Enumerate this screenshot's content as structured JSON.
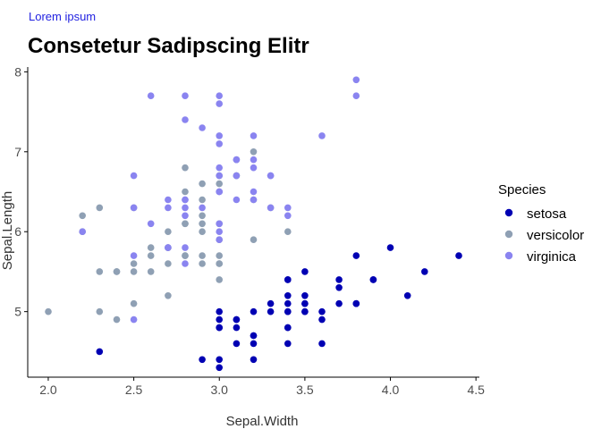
{
  "header": {
    "caption": "Lorem ipsum",
    "title": "Consetetur Sadipscing Elitr"
  },
  "colors": {
    "setosa": "#0000b3",
    "versicolor": "#8fa0b4",
    "virginica": "#8a84f0",
    "caption": "#1f1fe0",
    "axis": "#000000"
  },
  "chart_data": {
    "type": "scatter",
    "title": "Consetetur Sadipscing Elitr",
    "xlabel": "Sepal.Width",
    "ylabel": "Sepal.Length",
    "xlim": [
      1.88,
      4.52
    ],
    "ylim": [
      4.18,
      8.06
    ],
    "x_ticks": [
      "2.0",
      "2.5",
      "3.0",
      "3.5",
      "4.0",
      "4.5"
    ],
    "y_ticks": [
      "5",
      "6",
      "7",
      "8"
    ],
    "legend": {
      "title": "Species",
      "position": "right"
    },
    "series": [
      {
        "name": "setosa",
        "points": [
          [
            3.5,
            5.1
          ],
          [
            3.0,
            4.9
          ],
          [
            3.2,
            4.7
          ],
          [
            3.1,
            4.6
          ],
          [
            3.6,
            5.0
          ],
          [
            3.9,
            5.4
          ],
          [
            3.4,
            4.6
          ],
          [
            3.4,
            5.0
          ],
          [
            2.9,
            4.4
          ],
          [
            3.1,
            4.9
          ],
          [
            3.7,
            5.4
          ],
          [
            3.4,
            4.8
          ],
          [
            3.0,
            4.8
          ],
          [
            3.0,
            4.3
          ],
          [
            4.0,
            5.8
          ],
          [
            4.4,
            5.7
          ],
          [
            3.9,
            5.4
          ],
          [
            3.5,
            5.1
          ],
          [
            3.8,
            5.7
          ],
          [
            3.8,
            5.1
          ],
          [
            3.4,
            5.4
          ],
          [
            3.7,
            5.1
          ],
          [
            3.6,
            4.6
          ],
          [
            3.3,
            5.1
          ],
          [
            3.4,
            4.8
          ],
          [
            3.0,
            5.0
          ],
          [
            3.4,
            5.0
          ],
          [
            3.5,
            5.2
          ],
          [
            3.4,
            5.2
          ],
          [
            3.2,
            4.7
          ],
          [
            3.1,
            4.8
          ],
          [
            3.4,
            5.4
          ],
          [
            4.1,
            5.2
          ],
          [
            4.2,
            5.5
          ],
          [
            3.1,
            4.9
          ],
          [
            3.2,
            5.0
          ],
          [
            3.5,
            5.5
          ],
          [
            3.6,
            4.9
          ],
          [
            3.0,
            4.4
          ],
          [
            3.4,
            5.1
          ],
          [
            3.5,
            5.0
          ],
          [
            2.3,
            4.5
          ],
          [
            3.2,
            4.4
          ],
          [
            3.5,
            5.0
          ],
          [
            3.8,
            5.1
          ],
          [
            3.0,
            4.8
          ],
          [
            3.8,
            5.1
          ],
          [
            3.2,
            4.6
          ],
          [
            3.7,
            5.3
          ],
          [
            3.3,
            5.0
          ]
        ]
      },
      {
        "name": "versicolor",
        "points": [
          [
            3.2,
            7.0
          ],
          [
            3.2,
            6.4
          ],
          [
            3.1,
            6.9
          ],
          [
            2.3,
            5.5
          ],
          [
            2.8,
            6.5
          ],
          [
            2.8,
            5.7
          ],
          [
            3.3,
            6.3
          ],
          [
            2.4,
            4.9
          ],
          [
            2.9,
            6.6
          ],
          [
            2.7,
            5.2
          ],
          [
            2.0,
            5.0
          ],
          [
            3.0,
            5.9
          ],
          [
            2.2,
            6.0
          ],
          [
            2.9,
            6.1
          ],
          [
            2.9,
            5.6
          ],
          [
            3.1,
            6.7
          ],
          [
            3.0,
            5.6
          ],
          [
            2.7,
            5.8
          ],
          [
            2.2,
            6.2
          ],
          [
            2.5,
            5.6
          ],
          [
            3.2,
            5.9
          ],
          [
            2.8,
            6.1
          ],
          [
            2.5,
            6.3
          ],
          [
            2.8,
            6.1
          ],
          [
            2.9,
            6.4
          ],
          [
            3.0,
            6.6
          ],
          [
            2.8,
            6.8
          ],
          [
            3.0,
            6.7
          ],
          [
            2.9,
            6.0
          ],
          [
            2.6,
            5.7
          ],
          [
            2.4,
            5.5
          ],
          [
            2.4,
            5.5
          ],
          [
            2.7,
            5.8
          ],
          [
            2.7,
            6.0
          ],
          [
            3.0,
            5.4
          ],
          [
            3.4,
            6.0
          ],
          [
            3.1,
            6.7
          ],
          [
            2.3,
            6.3
          ],
          [
            3.0,
            5.6
          ],
          [
            2.5,
            5.5
          ],
          [
            2.6,
            5.5
          ],
          [
            3.0,
            6.1
          ],
          [
            2.6,
            5.8
          ],
          [
            2.3,
            5.0
          ],
          [
            2.7,
            5.6
          ],
          [
            3.0,
            5.7
          ],
          [
            2.9,
            5.7
          ],
          [
            2.9,
            6.2
          ],
          [
            2.5,
            5.1
          ],
          [
            2.8,
            5.7
          ]
        ]
      },
      {
        "name": "virginica",
        "points": [
          [
            3.3,
            6.3
          ],
          [
            2.7,
            5.8
          ],
          [
            3.0,
            7.1
          ],
          [
            2.9,
            6.3
          ],
          [
            3.0,
            6.5
          ],
          [
            3.0,
            7.6
          ],
          [
            2.5,
            4.9
          ],
          [
            2.9,
            7.3
          ],
          [
            2.5,
            6.7
          ],
          [
            3.6,
            7.2
          ],
          [
            3.2,
            6.5
          ],
          [
            2.7,
            6.4
          ],
          [
            3.0,
            6.8
          ],
          [
            2.5,
            5.7
          ],
          [
            2.8,
            5.8
          ],
          [
            3.2,
            6.4
          ],
          [
            3.0,
            6.5
          ],
          [
            3.8,
            7.7
          ],
          [
            2.6,
            7.7
          ],
          [
            2.2,
            6.0
          ],
          [
            3.2,
            6.9
          ],
          [
            2.8,
            5.6
          ],
          [
            2.8,
            7.7
          ],
          [
            2.7,
            6.3
          ],
          [
            3.3,
            6.7
          ],
          [
            3.2,
            7.2
          ],
          [
            2.8,
            6.2
          ],
          [
            3.0,
            6.1
          ],
          [
            2.8,
            6.4
          ],
          [
            3.0,
            7.2
          ],
          [
            2.8,
            7.4
          ],
          [
            3.8,
            7.9
          ],
          [
            2.8,
            6.4
          ],
          [
            2.8,
            6.3
          ],
          [
            2.6,
            6.1
          ],
          [
            3.0,
            7.7
          ],
          [
            3.4,
            6.3
          ],
          [
            3.1,
            6.4
          ],
          [
            3.0,
            6.0
          ],
          [
            3.1,
            6.9
          ],
          [
            3.1,
            6.7
          ],
          [
            3.1,
            6.9
          ],
          [
            2.7,
            5.8
          ],
          [
            3.2,
            6.8
          ],
          [
            3.3,
            6.7
          ],
          [
            3.0,
            6.7
          ],
          [
            2.5,
            6.3
          ],
          [
            3.0,
            6.5
          ],
          [
            3.4,
            6.2
          ],
          [
            3.0,
            5.9
          ]
        ]
      }
    ]
  }
}
